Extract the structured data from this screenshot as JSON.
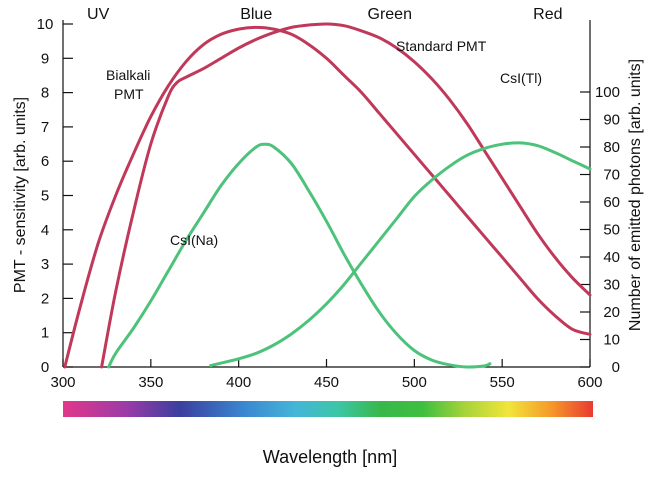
{
  "chart_data": {
    "type": "line",
    "xlabel": "Wavelength [nm]",
    "ylabel_left": "PMT - sensitivity [arb. units]",
    "ylabel_right": "Number of emitted photons [arb. units]",
    "xlim": [
      300,
      600
    ],
    "ylim_left": [
      0,
      10
    ],
    "ylim_right": [
      0,
      100
    ],
    "x_ticks": [
      "300",
      "350",
      "400",
      "450",
      "500",
      "550",
      "600"
    ],
    "y_left_ticks": [
      "0",
      "1",
      "2",
      "3",
      "4",
      "5",
      "6",
      "7",
      "8",
      "9",
      "10"
    ],
    "y_right_ticks": [
      "0",
      "10",
      "20",
      "30",
      "40",
      "50",
      "60",
      "70",
      "80",
      "90",
      "100"
    ],
    "bands": [
      {
        "label": "UV",
        "x": 320
      },
      {
        "label": "Blue",
        "x": 410
      },
      {
        "label": "Green",
        "x": 486
      },
      {
        "label": "Red",
        "x": 576
      }
    ],
    "series": [
      {
        "name": "Standard PMT",
        "axis": "left",
        "color": "#c0385a",
        "x": [
          301,
          310,
          320,
          330,
          340,
          350,
          360,
          370,
          380,
          390,
          400,
          410,
          420,
          430,
          440,
          450,
          460,
          470,
          480,
          490,
          500,
          510,
          520,
          530,
          540,
          550,
          560,
          570,
          580,
          590,
          600
        ],
        "y": [
          0,
          1.8,
          3.6,
          5.0,
          6.2,
          7.3,
          8.2,
          8.9,
          9.4,
          9.7,
          9.85,
          9.9,
          9.85,
          9.7,
          9.4,
          9.0,
          8.5,
          8.0,
          7.4,
          6.8,
          6.2,
          5.6,
          5.0,
          4.4,
          3.8,
          3.2,
          2.6,
          2.0,
          1.5,
          1.1,
          0.95
        ]
      },
      {
        "name": "Bialkali PMT",
        "axis": "left",
        "color": "#c0385a",
        "x": [
          322,
          330,
          340,
          350,
          360,
          365,
          370,
          380,
          390,
          400,
          410,
          420,
          430,
          440,
          450,
          460,
          470,
          480,
          490,
          500,
          510,
          520,
          530,
          540,
          550,
          560,
          570,
          580,
          590,
          600
        ],
        "y": [
          0,
          2.2,
          4.5,
          6.5,
          7.9,
          8.3,
          8.45,
          8.7,
          9.0,
          9.3,
          9.55,
          9.75,
          9.9,
          9.97,
          10.0,
          9.95,
          9.8,
          9.6,
          9.3,
          8.9,
          8.4,
          7.8,
          7.1,
          6.3,
          5.5,
          4.7,
          3.9,
          3.2,
          2.6,
          2.1
        ]
      },
      {
        "name": "CsI(Na)",
        "axis": "right",
        "color": "#4cc27a",
        "x": [
          326,
          330,
          340,
          350,
          360,
          370,
          380,
          390,
          400,
          410,
          415,
          420,
          430,
          440,
          450,
          460,
          470,
          480,
          490,
          500,
          510,
          520,
          530,
          540,
          543
        ],
        "y": [
          0,
          5,
          14,
          24,
          35,
          46,
          56,
          66,
          74,
          80,
          81,
          80,
          74,
          64,
          53,
          41,
          30,
          20,
          12,
          6,
          2.5,
          0.8,
          0,
          0.4,
          1.2
        ]
      },
      {
        "name": "CsI(Tl)",
        "axis": "right",
        "color": "#4cc27a",
        "x": [
          384,
          400,
          410,
          420,
          430,
          440,
          450,
          460,
          470,
          480,
          490,
          500,
          510,
          520,
          530,
          540,
          550,
          560,
          570,
          580,
          590,
          600
        ],
        "y": [
          0.5,
          3,
          5,
          8,
          12,
          17,
          23,
          30,
          38,
          46,
          54,
          62,
          68,
          73,
          77,
          79.5,
          81,
          81.5,
          80.5,
          78,
          75,
          72
        ]
      }
    ],
    "annotations": [
      {
        "text": "Bialkali",
        "series": "Standard PMT"
      },
      {
        "text": "PMT",
        "series": "Standard PMT"
      },
      {
        "text": "Standard PMT",
        "series": "Bialkali PMT"
      },
      {
        "text": "CsI(Na)",
        "series": "CsI(Na)"
      },
      {
        "text": "CsI(Tl)",
        "series": "CsI(Tl)"
      }
    ],
    "colorbar": "visible spectrum gradient from magenta (300) through blue, cyan, green, yellow, to red (600)",
    "grid": false
  }
}
